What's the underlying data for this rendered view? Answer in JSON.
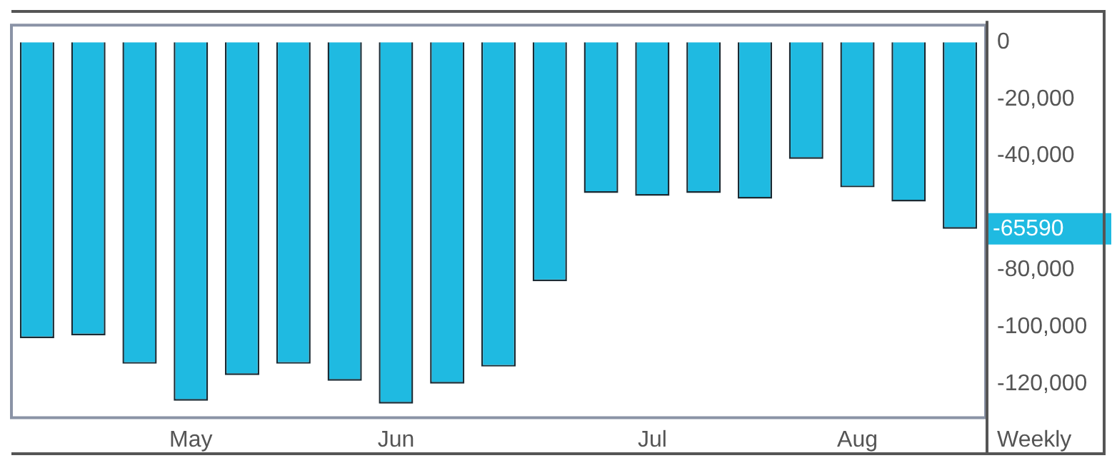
{
  "chart_data": {
    "type": "bar",
    "xlabel": "Weekly",
    "categories": [
      null,
      null,
      null,
      "May",
      null,
      null,
      null,
      "Jun",
      null,
      null,
      null,
      null,
      "Jul",
      null,
      null,
      null,
      "Aug",
      null,
      null
    ],
    "values": [
      -104000,
      -103000,
      -113000,
      -126000,
      -117000,
      -113000,
      -119000,
      -127000,
      -120000,
      -114000,
      -84000,
      -53000,
      -54000,
      -53000,
      -55000,
      -41000,
      -51000,
      -56000,
      -65590
    ],
    "color": "#1fbae1",
    "ylim": [
      -132000,
      6000
    ],
    "yticks": [
      {
        "value": 0,
        "label": "0"
      },
      {
        "value": -20000,
        "label": "-20,000"
      },
      {
        "value": -40000,
        "label": "-40,000"
      },
      {
        "value": -80000,
        "label": "-80,000"
      },
      {
        "value": -100000,
        "label": "-100,000"
      },
      {
        "value": -120000,
        "label": "-120,000"
      }
    ],
    "grid": false,
    "legend": false,
    "annotations": [
      "-65590"
    ]
  }
}
